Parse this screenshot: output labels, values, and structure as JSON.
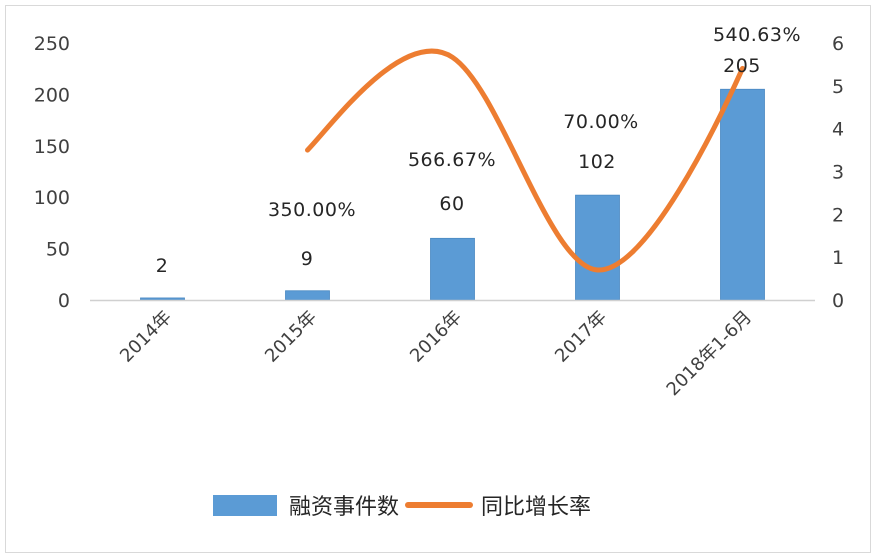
{
  "chart_data": {
    "type": "bar",
    "combo": "bar+line (dual axis)",
    "title": "",
    "categories": [
      "2014年",
      "2015年",
      "2016年",
      "2017年",
      "2018年1-6月"
    ],
    "series": [
      {
        "name": "融资事件数",
        "type": "bar",
        "axis": "left",
        "color": "#5b9bd5",
        "values": [
          2,
          9,
          60,
          102,
          205
        ],
        "labels": [
          "2",
          "9",
          "60",
          "102",
          "205"
        ]
      },
      {
        "name": "同比增长率",
        "type": "line",
        "smooth": true,
        "axis": "right",
        "color": "#ed7d31",
        "values": [
          null,
          3.5,
          5.6667,
          0.7,
          5.4063
        ],
        "labels": [
          "",
          "350.00%",
          "566.67%",
          "70.00%",
          "540.63%"
        ]
      }
    ],
    "left_axis": {
      "ticks": [
        "0",
        "50",
        "100",
        "150",
        "200",
        "250"
      ],
      "ylim": [
        0,
        250
      ]
    },
    "right_axis": {
      "ticks": [
        "0",
        "1",
        "2",
        "3",
        "4",
        "5",
        "6"
      ],
      "ylim": [
        0,
        6
      ]
    },
    "xlabel": "",
    "ylabel": "",
    "grid": false,
    "legend_position": "bottom"
  },
  "legend": {
    "bar_label": "融资事件数",
    "line_label": "同比增长率"
  }
}
